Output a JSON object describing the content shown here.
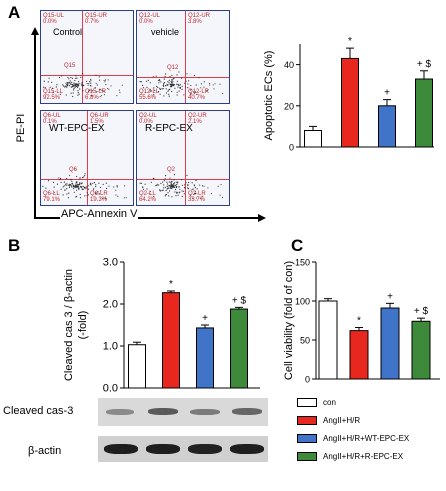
{
  "panel_labels": {
    "a": "A",
    "b": "B",
    "c": "C"
  },
  "flow": {
    "axis_y": "PE-PI",
    "axis_x": "APC-Annexin V",
    "plots": [
      {
        "title": "Control",
        "ul": "Q15-UL",
        "ul_pct": "0.0%",
        "ur": "Q15-UR",
        "ur_pct": "0.7%",
        "ll": "Q15-LL",
        "ll_pct": "92.5%",
        "lr": "Q15-LR",
        "lr_pct": "6.8%",
        "center": "Q15"
      },
      {
        "title": "vehicle",
        "ul": "Q12-UL",
        "ul_pct": "0.0%",
        "ur": "Q12-UR",
        "ur_pct": "3.8%",
        "ll": "Q12-LL",
        "ll_pct": "55.6%",
        "lr": "Q12-LR",
        "lr_pct": "40.7%",
        "center": "Q12"
      },
      {
        "title": "WT-EPC-EX",
        "ul": "Q6-UL",
        "ul_pct": "0.1%",
        "ur": "Q6-UR",
        "ur_pct": "1.5%",
        "ll": "Q6-LL",
        "ll_pct": "79.1%",
        "lr": "Q6-LR",
        "lr_pct": "19.3%",
        "center": "Q6"
      },
      {
        "title": "R-EPC-EX",
        "ul": "Q2-UL",
        "ul_pct": "0.0%",
        "ur": "Q2-UR",
        "ur_pct": "2.1%",
        "ll": "Q2-LL",
        "ll_pct": "64.2%",
        "lr": "Q2-LR",
        "lr_pct": "33.7%",
        "center": "Q2"
      }
    ]
  },
  "blot": {
    "row1": "Cleaved cas-3",
    "row2": "β-actin"
  },
  "legend": [
    "con",
    "AngII+H/R",
    "AngII+H/R+WT-EPC-EX",
    "AngII+H/R+R-EPC-EX"
  ],
  "colors": {
    "con": "#ffffff",
    "hr": "#e8281e",
    "wt": "#3f74c8",
    "r": "#3d8a3a"
  },
  "chart_data": [
    {
      "type": "bar",
      "panel": "A",
      "categories": [
        "con",
        "AngII+H/R",
        "AngII+H/R+WT-EPC-EX",
        "AngII+H/R+R-EPC-EX"
      ],
      "values": [
        8,
        43,
        20,
        33
      ],
      "errors": [
        2,
        5,
        3,
        4
      ],
      "annotations": [
        "",
        "*",
        "+",
        "+ $"
      ],
      "ylabel": "Apoptotic ECs (%)",
      "ylim": [
        0,
        50
      ],
      "yticks": [
        "0",
        "20",
        "40"
      ],
      "colors": [
        "#ffffff",
        "#e8281e",
        "#3f74c8",
        "#3d8a3a"
      ]
    },
    {
      "type": "bar",
      "panel": "B",
      "categories": [
        "con",
        "AngII+H/R",
        "AngII+H/R+WT-EPC-EX",
        "AngII+H/R+R-EPC-EX"
      ],
      "values": [
        1.03,
        2.27,
        1.43,
        1.88
      ],
      "errors": [
        0.06,
        0.04,
        0.07,
        0.04
      ],
      "annotations": [
        "",
        "*",
        "+",
        "+ $"
      ],
      "ylabel": "Cleaved cas 3 / β-actin (-fold)",
      "ylabel_lines": [
        "Cleaved cas 3 / β-actin",
        "(-fold)"
      ],
      "ylim": [
        0,
        3.0
      ],
      "yticks": [
        "0.0",
        "1.0",
        "2.0",
        "3.0"
      ],
      "colors": [
        "#ffffff",
        "#e8281e",
        "#3f74c8",
        "#3d8a3a"
      ]
    },
    {
      "type": "bar",
      "panel": "C",
      "categories": [
        "con",
        "AngII+H/R",
        "AngII+H/R+WT-EPC-EX",
        "AngII+H/R+R-EPC-EX"
      ],
      "values": [
        100,
        62,
        91,
        74
      ],
      "errors": [
        3,
        4,
        6,
        4
      ],
      "annotations": [
        "",
        "*",
        "+",
        "+ $"
      ],
      "ylabel": "Cell viability (fold of con)",
      "ylim": [
        0,
        150
      ],
      "yticks": [
        "0",
        "50",
        "100",
        "150"
      ],
      "colors": [
        "#ffffff",
        "#e8281e",
        "#3f74c8",
        "#3d8a3a"
      ]
    }
  ]
}
